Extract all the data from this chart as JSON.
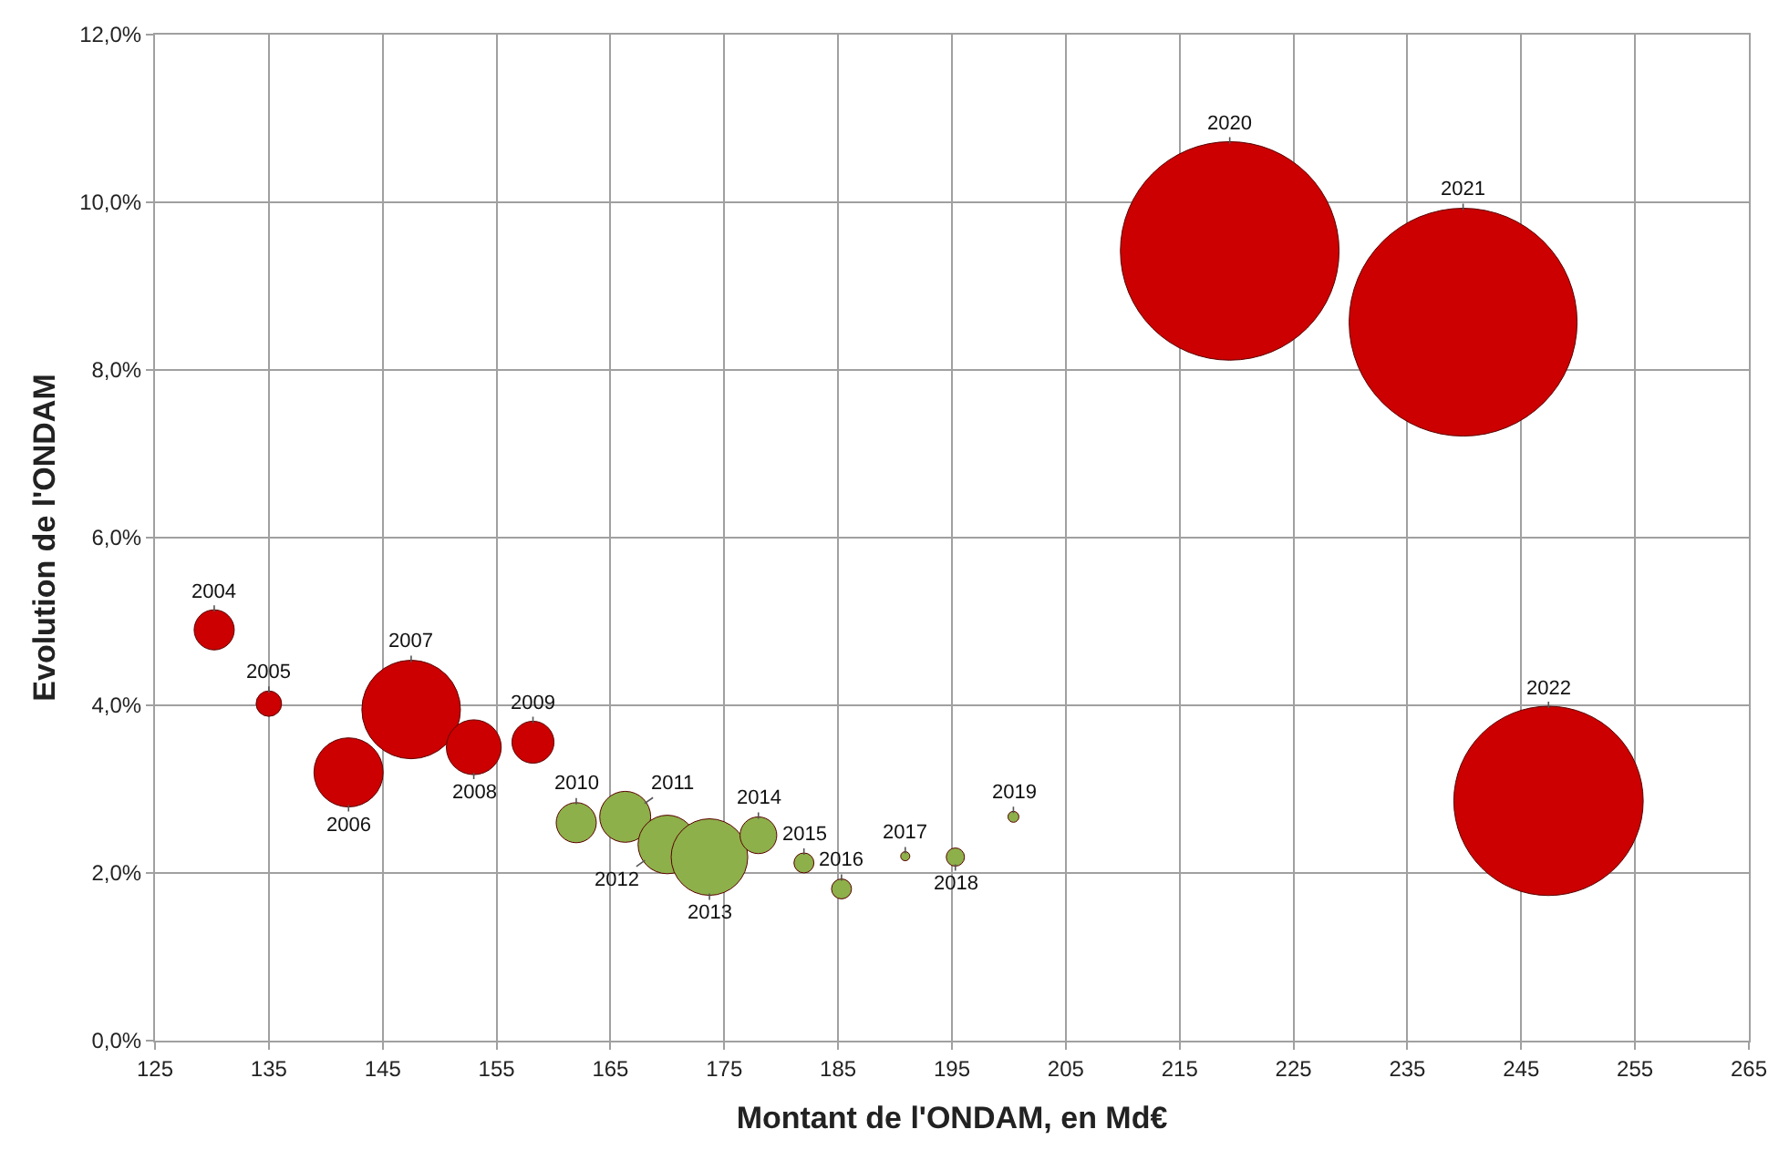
{
  "chart_data": {
    "type": "bubble",
    "xlabel": "Montant de l'ONDAM, en Md€",
    "ylabel": "Evolution de l'ONDAM",
    "x": [
      130.2,
      135.0,
      142.0,
      147.5,
      153.0,
      158.2,
      162.0,
      166.3,
      170.0,
      173.7,
      178.0,
      182.0,
      185.3,
      190.9,
      195.3,
      200.4,
      219.4,
      239.9,
      247.4
    ],
    "values": [
      4.9,
      4.02,
      3.2,
      3.95,
      3.5,
      3.56,
      2.6,
      2.67,
      2.34,
      2.19,
      2.45,
      2.12,
      1.81,
      2.2,
      2.19,
      2.67,
      9.42,
      8.57,
      2.86
    ],
    "annotations": [
      {
        "text": "2004",
        "x": 130.2,
        "y": 4.9
      },
      {
        "text": "2005",
        "x": 135.0,
        "y": 4.02
      },
      {
        "text": "2006",
        "x": 142.0,
        "y": 3.2
      },
      {
        "text": "2007",
        "x": 147.5,
        "y": 3.95
      },
      {
        "text": "2008",
        "x": 153.0,
        "y": 3.5
      },
      {
        "text": "2009",
        "x": 158.2,
        "y": 3.56
      },
      {
        "text": "2010",
        "x": 162.0,
        "y": 2.6
      },
      {
        "text": "2011",
        "x": 166.3,
        "y": 2.67
      },
      {
        "text": "2012",
        "x": 170.0,
        "y": 2.34
      },
      {
        "text": "2013",
        "x": 173.7,
        "y": 2.19
      },
      {
        "text": "2014",
        "x": 178.0,
        "y": 2.45
      },
      {
        "text": "2015",
        "x": 182.0,
        "y": 2.12
      },
      {
        "text": "2016",
        "x": 185.3,
        "y": 1.81
      },
      {
        "text": "2017",
        "x": 190.9,
        "y": 2.2
      },
      {
        "text": "2018",
        "x": 195.3,
        "y": 2.19
      },
      {
        "text": "2019",
        "x": 200.4,
        "y": 2.67
      },
      {
        "text": "2020",
        "x": 219.4,
        "y": 9.42
      },
      {
        "text": "2021",
        "x": 239.9,
        "y": 8.57
      },
      {
        "text": "2022",
        "x": 247.4,
        "y": 2.86
      }
    ],
    "sizes": [
      0.031,
      0.0125,
      0.092,
      0.187,
      0.058,
      0.034,
      0.031,
      0.05,
      0.066,
      0.113,
      0.026,
      0.0077,
      0.0077,
      0.0016,
      0.0064,
      0.0023,
      0.92,
      1,
      0.69
    ],
    "colors": [
      "#cc0000",
      "#cc0000",
      "#cc0000",
      "#cc0000",
      "#cc0000",
      "#cc0000",
      "#8db04a",
      "#8db04a",
      "#8db04a",
      "#8db04a",
      "#8db04a",
      "#8db04a",
      "#8db04a",
      "#8db04a",
      "#8db04a",
      "#8db04a",
      "#cc0000",
      "#cc0000",
      "#cc0000"
    ],
    "marker": "circle",
    "xlim": [
      125,
      265
    ],
    "xticks": [
      125,
      135,
      145,
      155,
      165,
      175,
      185,
      195,
      205,
      215,
      225,
      235,
      245,
      255,
      265
    ],
    "ylim": [
      0,
      12
    ],
    "yticks": [
      {
        "value": 0,
        "label": "0,0%"
      },
      {
        "value": 2,
        "label": "2,0%"
      },
      {
        "value": 4,
        "label": "4,0%"
      },
      {
        "value": 6,
        "label": "6,0%"
      },
      {
        "value": 8,
        "label": "8,0%"
      },
      {
        "value": 10,
        "label": "10,0%"
      },
      {
        "value": 12,
        "label": "12,0%"
      }
    ],
    "grid": true
  }
}
